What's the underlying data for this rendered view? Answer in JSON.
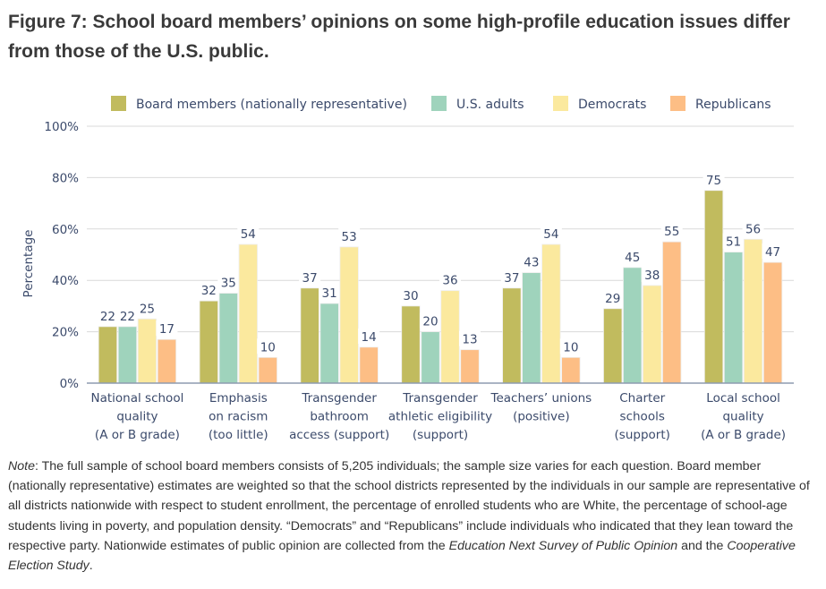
{
  "title": "Figure 7: School board members’ opinions on some high-profile education issues differ from those of the U.S. public.",
  "chart_data": {
    "type": "bar",
    "title": "Figure 7: School board members’ opinions on some high-profile education issues differ from those of the U.S. public.",
    "xlabel": "",
    "ylabel": "Percentage",
    "ylim": [
      0,
      100
    ],
    "yticks": [
      0,
      20,
      40,
      60,
      80,
      100
    ],
    "ytick_labels": [
      "0%",
      "20%",
      "40%",
      "60%",
      "80%",
      "100%"
    ],
    "grid": true,
    "legend_position": "top",
    "categories": [
      [
        "National school",
        "quality",
        "(A or B grade)"
      ],
      [
        "Emphasis",
        "on racism",
        "(too little)"
      ],
      [
        "Transgender",
        "bathroom",
        "access (support)"
      ],
      [
        "Transgender",
        "athletic eligibility",
        "(support)"
      ],
      [
        "Teachers’ unions",
        "(positive)"
      ],
      [
        "Charter",
        "schools",
        "(support)"
      ],
      [
        "Local school",
        "quality",
        "(A or B grade)"
      ]
    ],
    "series": [
      {
        "name": "Board members (nationally representative)",
        "color": "#c1bb5e",
        "values": [
          22,
          32,
          37,
          30,
          37,
          29,
          75
        ]
      },
      {
        "name": "U.S. adults",
        "color": "#9fd3bc",
        "values": [
          22,
          35,
          31,
          20,
          43,
          45,
          51
        ]
      },
      {
        "name": "Democrats",
        "color": "#fbe99e",
        "values": [
          25,
          54,
          53,
          36,
          54,
          38,
          56
        ]
      },
      {
        "name": "Republicans",
        "color": "#fdbe85",
        "values": [
          17,
          10,
          14,
          13,
          10,
          55,
          47
        ]
      }
    ]
  },
  "note": {
    "label": "Note",
    "text_1": ": The full sample of school board members consists of 5,205 individuals; the sample size varies for each question. Board member (nationally representative) estimates are weighted so that the school districts represented by the individuals in our sample are representative of all districts nationwide with respect to student enrollment, the percentage of enrolled students who are White, the percentage of school-age students living in poverty, and population density. “Democrats” and “Republicans” include individuals who indicated that they lean toward the respective party. Nationwide estimates of public opinion are collected from the ",
    "source_1": "Education Next Survey of Public Opinion",
    "text_2": " and the ",
    "source_2": "Cooperative Election Study",
    "text_3": "."
  }
}
